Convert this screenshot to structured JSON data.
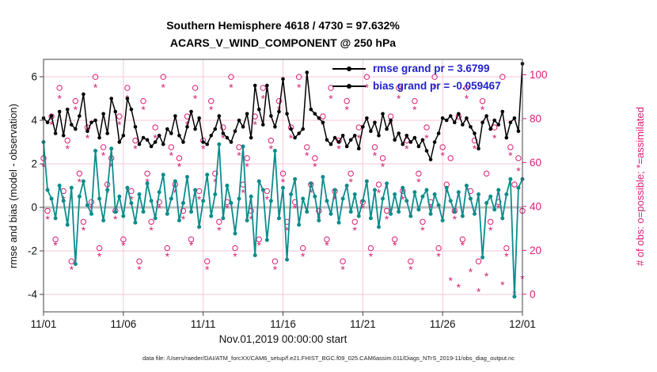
{
  "chart_data": {
    "type": "line",
    "title": "Southern Hemisphere 4618 / 4730 = 97.632%",
    "subtitle": "ACARS_V_WIND_COMPONENT @ 250 hPa",
    "xlabel": "Nov.01,2019 00:00:00 start",
    "ylabel_left": "rmse and bias (model - observation)",
    "ylabel_right": "# of obs: o=possible; *=assimilated",
    "caption": "data file: /Users/raeder/DAI/ATM_forcXX/CAM6_setup/f.e21.FHIST_BGC.f09_025.CAM6assim.011/Diags_NTrS_2019-11/obs_diag_output.nc",
    "x_range": [
      0,
      30
    ],
    "x_step_days": 0.25,
    "x_ticks": {
      "positions": [
        0,
        5,
        10,
        15,
        20,
        25,
        30
      ],
      "labels": [
        "11/01",
        "11/06",
        "11/11",
        "11/16",
        "11/21",
        "11/26",
        "12/01"
      ]
    },
    "left_axis": {
      "min": -4.8,
      "max": 6.8,
      "ticks": [
        -4,
        -2,
        0,
        2,
        4,
        6
      ],
      "color": "#111111"
    },
    "right_axis": {
      "min": -8,
      "max": 107,
      "ticks": [
        0,
        20,
        40,
        60,
        80,
        100
      ],
      "color": "#d91e75"
    },
    "grid_color": "#f5c6d8",
    "zero_line_color": "#c0c0c0",
    "legend_text_color": "#2222cc",
    "series": [
      {
        "name": "rmse grand pr = 3.6799",
        "color": "#000000",
        "axis": "left",
        "width": 1.5,
        "marker_r": 2.3,
        "values": [
          4.1,
          3.9,
          4.2,
          3.4,
          4.4,
          3.3,
          4.5,
          3.8,
          3.6,
          4.2,
          5.2,
          3.5,
          3.9,
          4.0,
          3.2,
          4.3,
          3.4,
          5.0,
          4.4,
          3.0,
          3.3,
          5.0,
          4.5,
          3.7,
          2.9,
          3.2,
          3.1,
          2.8,
          3.0,
          3.3,
          2.9,
          3.6,
          3.4,
          4.2,
          3.3,
          3.0,
          3.7,
          4.4,
          3.6,
          4.1,
          3.0,
          2.9,
          3.3,
          3.6,
          4.2,
          3.4,
          3.2,
          3.0,
          3.5,
          4.0,
          3.7,
          4.3,
          3.2,
          5.6,
          4.5,
          3.8,
          5.6,
          4.2,
          3.7,
          4.4,
          5.9,
          4.3,
          3.6,
          3.2,
          3.4,
          3.6,
          6.2,
          4.5,
          4.3,
          4.1,
          3.9,
          3.1,
          2.9,
          3.2,
          3.0,
          3.3,
          2.8,
          3.1,
          3.3,
          2.7,
          3.7,
          4.1,
          3.5,
          3.9,
          3.3,
          4.3,
          3.6,
          4.0,
          3.1,
          3.4,
          2.9,
          3.3,
          3.0,
          3.2,
          2.8,
          3.1,
          2.6,
          2.2,
          3.0,
          3.4,
          4.1,
          4.0,
          4.2,
          3.9,
          4.3,
          3.8,
          4.1,
          3.7,
          3.4,
          2.7,
          3.9,
          4.2,
          3.6,
          4.0,
          3.8,
          4.4,
          3.2,
          3.9,
          4.1,
          3.5,
          6.6
        ]
      },
      {
        "name": "bias grand pr = -0.059467",
        "color": "#0d8c8c",
        "axis": "left",
        "width": 1.8,
        "marker_r": 2.5,
        "values": [
          3.0,
          0.8,
          0.4,
          -0.5,
          1.0,
          0.3,
          -0.8,
          0.9,
          -2.6,
          0.5,
          1.2,
          0.1,
          -0.3,
          2.6,
          0.4,
          -0.6,
          0.8,
          2.7,
          -0.2,
          0.5,
          -0.4,
          0.9,
          0.2,
          -0.7,
          0.6,
          -0.2,
          1.1,
          0.3,
          -0.5,
          0.7,
          1.5,
          -0.3,
          0.4,
          1.2,
          -0.6,
          0.2,
          1.4,
          -0.2,
          0.8,
          -0.9,
          0.3,
          1.5,
          -0.4,
          0.6,
          2.9,
          -0.5,
          1.0,
          0.2,
          -1.2,
          0.4,
          2.8,
          -0.6,
          0.5,
          -2.2,
          1.2,
          0.8,
          -1.5,
          0.3,
          2.6,
          -0.5,
          0.9,
          -2.4,
          0.6,
          1.3,
          -0.8,
          0.4,
          -0.2,
          1.1,
          0.5,
          -0.6,
          1.4,
          0.3,
          -0.3,
          0.8,
          -0.7,
          0.4,
          1.0,
          -0.2,
          0.6,
          -0.4,
          0.3,
          1.2,
          -0.5,
          0.8,
          -0.9,
          0.4,
          1.1,
          -0.3,
          0.6,
          -0.2,
          0.9,
          0.3,
          -0.4,
          0.7,
          -0.1,
          0.5,
          0.8,
          -0.3,
          0.6,
          0.1,
          -0.6,
          0.9,
          0.3,
          -0.2,
          0.7,
          -0.4,
          1.0,
          0.4,
          -0.3,
          0.6,
          -2.3,
          0.2,
          0.5,
          -0.1,
          0.8,
          -0.5,
          0.6,
          1.3,
          -4.1,
          0.9,
          1.3
        ]
      }
    ],
    "scatter": [
      {
        "name": "possible",
        "marker": "o",
        "color": "#d91e75",
        "axis": "right",
        "values": [
          62,
          38,
          81,
          25,
          94,
          47,
          70,
          15,
          88,
          55,
          33,
          76,
          42,
          99,
          21,
          67,
          50,
          62,
          38,
          81,
          25,
          94,
          47,
          70,
          15,
          88,
          55,
          33,
          76,
          42,
          99,
          21,
          67,
          50,
          62,
          38,
          81,
          25,
          94,
          47,
          70,
          15,
          88,
          55,
          33,
          76,
          42,
          99,
          21,
          67,
          50,
          62,
          38,
          81,
          25,
          94,
          47,
          70,
          15,
          88,
          55,
          33,
          76,
          42,
          99,
          21,
          67,
          50,
          62,
          38,
          81,
          25,
          94,
          47,
          70,
          15,
          88,
          55,
          33,
          76,
          42,
          99,
          21,
          67,
          50,
          62,
          38,
          81,
          25,
          94,
          47,
          70,
          15,
          88,
          55,
          33,
          76,
          42,
          99,
          21,
          67,
          50,
          62,
          38,
          81,
          25,
          94,
          47,
          70,
          15,
          88,
          55,
          33,
          76,
          42,
          99,
          21,
          67,
          50,
          62,
          38
        ]
      },
      {
        "name": "assimilated",
        "marker": "*",
        "color": "#d91e75",
        "axis": "right",
        "values": [
          60,
          36,
          79,
          24,
          91,
          45,
          68,
          13,
          86,
          53,
          31,
          73,
          41,
          96,
          19,
          65,
          48,
          60,
          36,
          79,
          24,
          91,
          45,
          68,
          13,
          86,
          53,
          31,
          73,
          41,
          96,
          19,
          65,
          48,
          60,
          36,
          79,
          24,
          91,
          45,
          68,
          13,
          86,
          53,
          31,
          73,
          41,
          96,
          19,
          65,
          48,
          60,
          36,
          79,
          24,
          91,
          45,
          68,
          13,
          86,
          53,
          31,
          73,
          41,
          96,
          19,
          65,
          48,
          60,
          36,
          79,
          24,
          91,
          45,
          68,
          13,
          86,
          53,
          31,
          73,
          41,
          96,
          19,
          65,
          48,
          60,
          36,
          79,
          24,
          91,
          45,
          68,
          13,
          86,
          53,
          31,
          73,
          41,
          96,
          19,
          65,
          48,
          8,
          36,
          5,
          24,
          91,
          12,
          68,
          3,
          86,
          10,
          31,
          73,
          41,
          6,
          19,
          65,
          2,
          58,
          9
        ]
      }
    ]
  }
}
